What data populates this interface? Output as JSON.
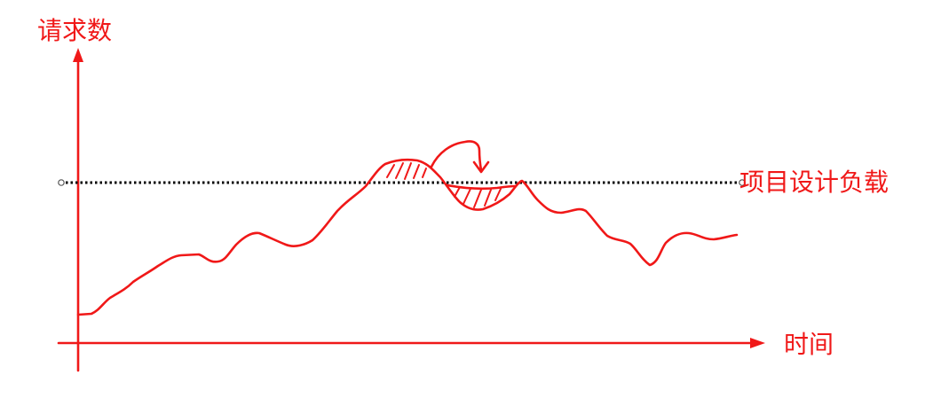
{
  "colors": {
    "sketch": "#f01818",
    "load_line": "#000000"
  },
  "labels": {
    "y_axis": "请求数",
    "x_axis": "时间",
    "design_load": "项目设计负载"
  }
}
